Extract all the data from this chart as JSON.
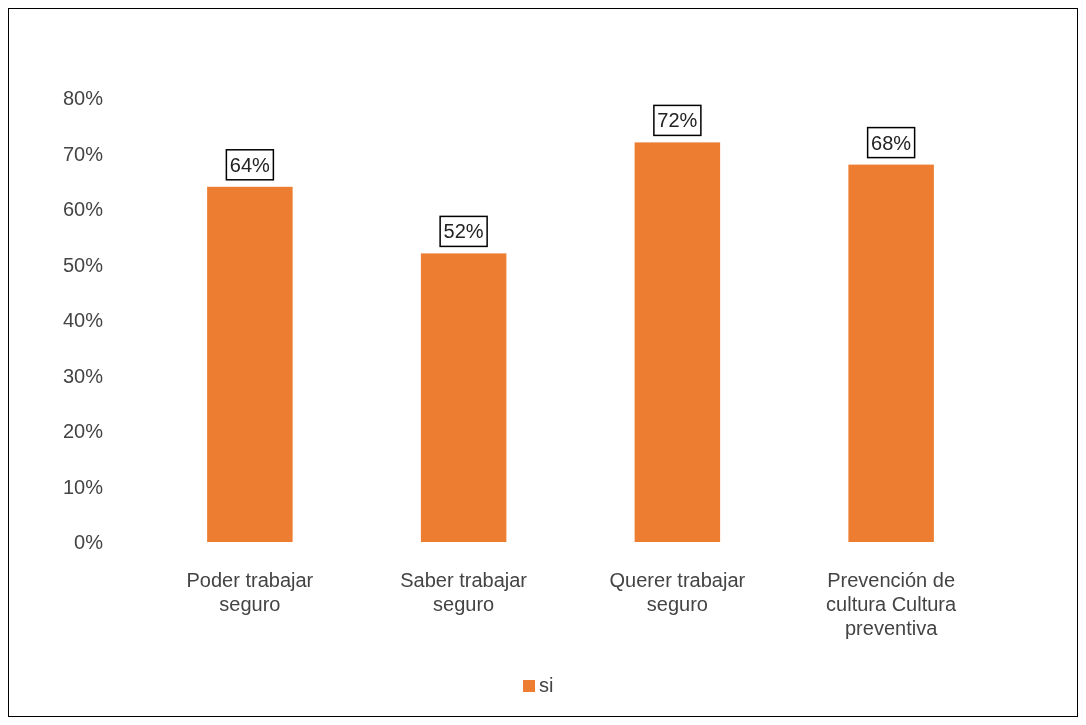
{
  "chart_data": {
    "type": "bar",
    "categories": [
      "Poder trabajar seguro",
      "Saber trabajar seguro",
      "Querer trabajar seguro",
      "Prevención de cultura Cultura preventiva"
    ],
    "series": [
      {
        "name": "si",
        "color": "#ed7d31",
        "values": [
          64,
          52,
          72,
          68
        ],
        "value_labels": [
          "64%",
          "52%",
          "72%",
          "68%"
        ]
      }
    ],
    "ylim": [
      0,
      80
    ],
    "yticks": [
      {
        "value": 0,
        "label": "0%"
      },
      {
        "value": 10,
        "label": "10%"
      },
      {
        "value": 20,
        "label": "20%"
      },
      {
        "value": 30,
        "label": "30%"
      },
      {
        "value": 40,
        "label": "40%"
      },
      {
        "value": 50,
        "label": "50%"
      },
      {
        "value": 60,
        "label": "60%"
      },
      {
        "value": 70,
        "label": "70%"
      },
      {
        "value": 80,
        "label": "80%"
      }
    ],
    "grid": false,
    "legend": "bottom"
  }
}
